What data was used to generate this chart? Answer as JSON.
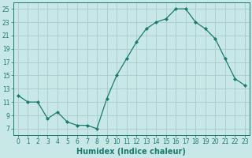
{
  "x": [
    0,
    1,
    2,
    3,
    4,
    5,
    6,
    7,
    8,
    9,
    10,
    11,
    12,
    13,
    14,
    15,
    16,
    17,
    18,
    19,
    20,
    21,
    22,
    23
  ],
  "y": [
    12,
    11,
    11,
    8.5,
    9.5,
    8,
    7.5,
    7.5,
    7,
    11.5,
    15,
    17.5,
    20,
    22,
    23,
    23.5,
    25,
    25,
    23,
    22,
    20.5,
    17.5,
    14.5,
    13.5
  ],
  "line_color": "#1a7a6e",
  "marker": "D",
  "marker_size": 2.0,
  "bg_color": "#c8e8e8",
  "grid_color": "#aacccc",
  "xlabel": "Humidex (Indice chaleur)",
  "ylabel": "",
  "xlim": [
    -0.5,
    23.5
  ],
  "ylim": [
    6,
    26
  ],
  "yticks": [
    7,
    9,
    11,
    13,
    15,
    17,
    19,
    21,
    23,
    25
  ],
  "xticks": [
    0,
    1,
    2,
    3,
    4,
    5,
    6,
    7,
    8,
    9,
    10,
    11,
    12,
    13,
    14,
    15,
    16,
    17,
    18,
    19,
    20,
    21,
    22,
    23
  ],
  "tick_fontsize": 5.5,
  "xlabel_fontsize": 7,
  "linewidth": 0.9
}
